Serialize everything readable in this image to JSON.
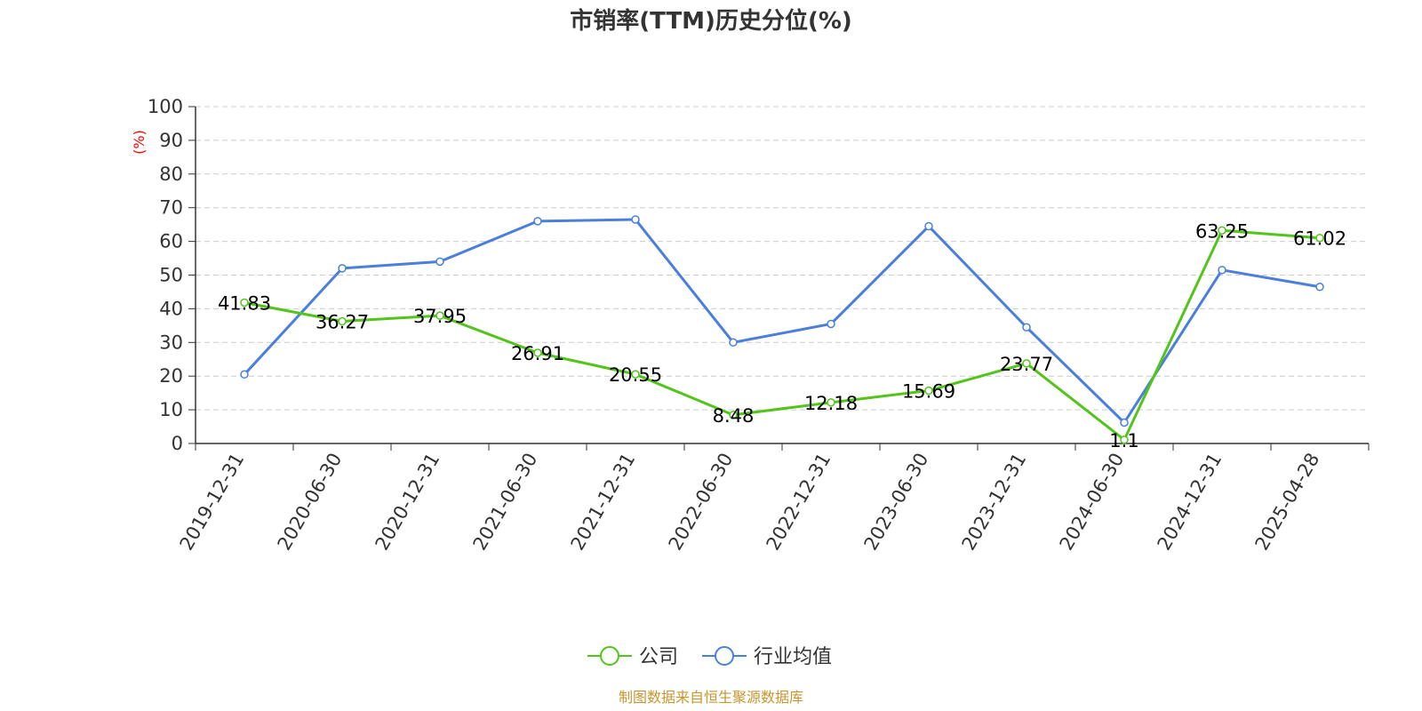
{
  "chart_data": {
    "type": "line",
    "title": "市销率(TTM)历史分位(%)",
    "ylabel": "(%)",
    "ylim": [
      0,
      100
    ],
    "yticks": [
      0,
      10,
      20,
      30,
      40,
      50,
      60,
      70,
      80,
      90,
      100
    ],
    "grid": true,
    "legend_position": "bottom-center",
    "categories": [
      "2019-12-31",
      "2020-06-30",
      "2020-12-31",
      "2021-06-30",
      "2021-12-31",
      "2022-06-30",
      "2022-12-31",
      "2023-06-30",
      "2023-12-31",
      "2024-06-30",
      "2024-12-31",
      "2025-04-28"
    ],
    "series": [
      {
        "name": "公司",
        "color": "#52c41a",
        "show_labels": true,
        "values": [
          41.83,
          36.27,
          37.95,
          26.91,
          20.55,
          8.48,
          12.18,
          15.69,
          23.77,
          1.1,
          63.25,
          61.02
        ]
      },
      {
        "name": "行业均值",
        "color": "#4a7fdc",
        "show_labels": false,
        "values": [
          20.5,
          52.0,
          54.0,
          66.0,
          66.5,
          30.0,
          35.5,
          64.5,
          34.5,
          6.2,
          51.5,
          46.5
        ]
      }
    ]
  },
  "footer": {
    "source": "制图数据来自恒生聚源数据库"
  }
}
